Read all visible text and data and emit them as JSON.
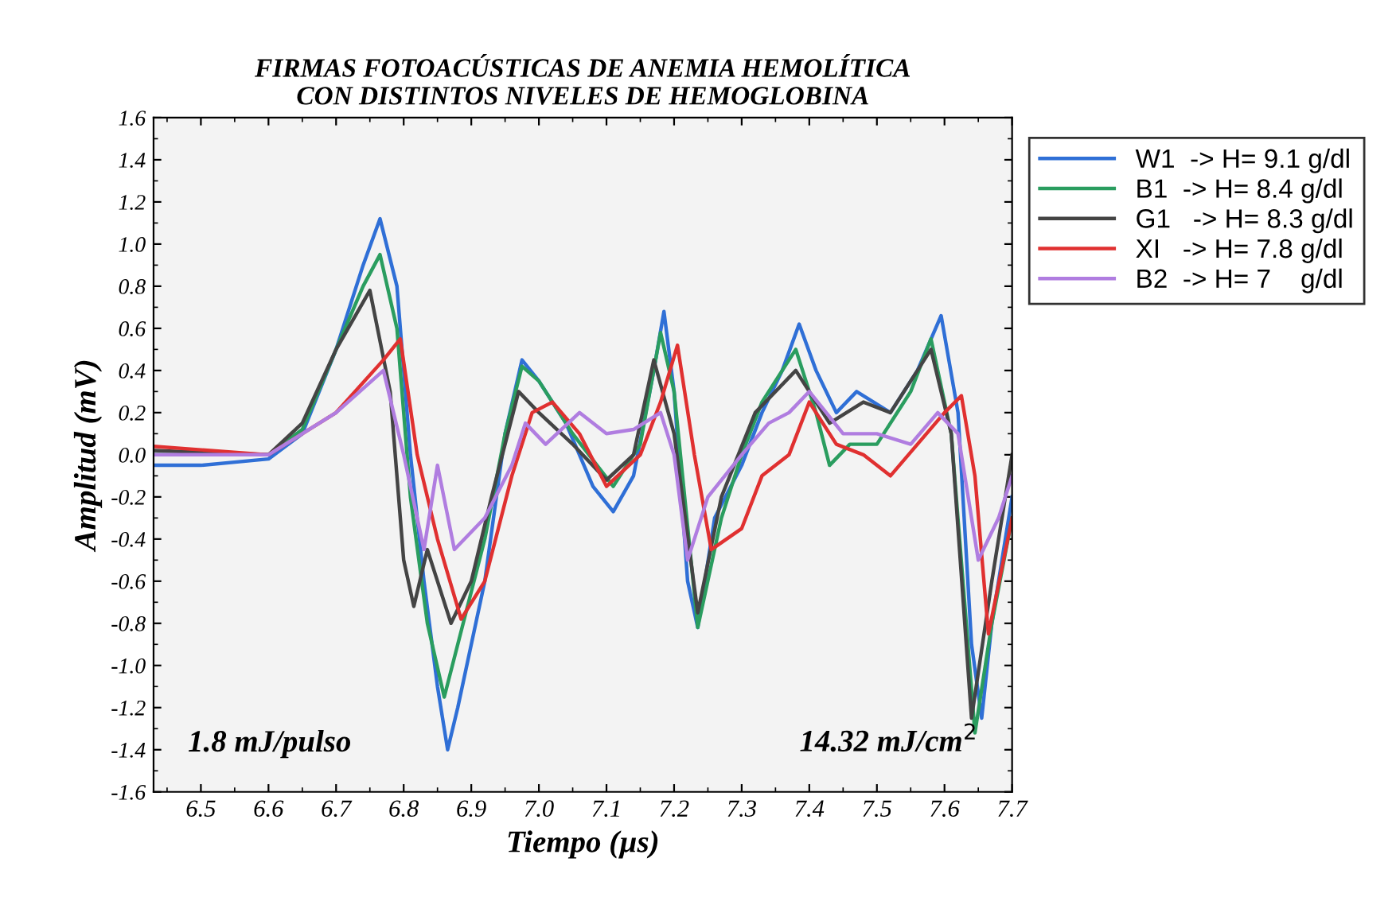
{
  "chart_data": {
    "type": "line",
    "title": "FIRMAS FOTOACÚSTICAS DE ANEMIA HEMOLÍTICA\nCON DISTINTOS NIVELES DE HEMOGLOBINA",
    "xlabel": "Tiempo (µs)",
    "ylabel": "Amplitud (mV)",
    "xlim": [
      6.43,
      7.7
    ],
    "xticks": [
      6.5,
      6.6,
      6.7,
      6.8,
      6.9,
      {
        "value": 7,
        "label": "7.0"
      },
      7.1,
      7.2,
      7.3,
      7.4,
      7.5,
      7.6,
      7.7
    ],
    "ylim": [
      -1.6,
      1.6
    ],
    "yticks": [
      1.6,
      1.4,
      1.2,
      {
        "value": 1,
        "label": "1.0"
      },
      0.8,
      0.6,
      0.4,
      0.2,
      {
        "value": 0,
        "label": "0.0"
      },
      -0.2,
      -0.4,
      -0.6,
      -0.8,
      {
        "value": -1,
        "label": "-1.0"
      },
      -1.2,
      -1.4,
      -1.6
    ],
    "grid": false,
    "legend": "top right",
    "line_style": "solid",
    "marker": "none",
    "annotations": [
      "1.8 mJ/pulso",
      "14.32 mJ/cm$^{2}$"
    ],
    "series": [
      {
        "name": "W1  -> H= 9.1 g/dl",
        "color": "#2f6fd6",
        "x": [
          6.43,
          6.5,
          6.6,
          6.65,
          6.7,
          6.74,
          6.765,
          6.79,
          6.81,
          6.83,
          6.85,
          6.865,
          6.88,
          6.92,
          6.95,
          6.975,
          7.0,
          7.04,
          7.08,
          7.11,
          7.14,
          7.17,
          7.185,
          7.2,
          7.22,
          7.235,
          7.26,
          7.3,
          7.33,
          7.36,
          7.385,
          7.41,
          7.44,
          7.47,
          7.52,
          7.56,
          7.595,
          7.62,
          7.64,
          7.655,
          7.67,
          7.7
        ],
        "values": [
          -0.05,
          -0.05,
          -0.02,
          0.1,
          0.5,
          0.9,
          1.12,
          0.8,
          0.0,
          -0.6,
          -1.1,
          -1.4,
          -1.2,
          -0.6,
          0.1,
          0.45,
          0.35,
          0.15,
          -0.15,
          -0.27,
          -0.1,
          0.4,
          0.68,
          0.3,
          -0.6,
          -0.82,
          -0.3,
          -0.05,
          0.2,
          0.4,
          0.62,
          0.4,
          0.2,
          0.3,
          0.2,
          0.4,
          0.66,
          0.2,
          -0.9,
          -1.25,
          -0.8,
          -0.2
        ]
      },
      {
        "name": "B1  -> H= 8.4 g/dl",
        "color": "#2a9d5f",
        "x": [
          6.43,
          6.5,
          6.6,
          6.65,
          6.7,
          6.74,
          6.765,
          6.79,
          6.81,
          6.835,
          6.86,
          6.88,
          6.92,
          6.95,
          6.975,
          7.0,
          7.05,
          7.11,
          7.15,
          7.18,
          7.2,
          7.235,
          7.27,
          7.3,
          7.33,
          7.38,
          7.41,
          7.43,
          7.46,
          7.5,
          7.55,
          7.58,
          7.61,
          7.645,
          7.67,
          7.7
        ],
        "values": [
          0.0,
          0.0,
          0.0,
          0.12,
          0.5,
          0.8,
          0.95,
          0.6,
          -0.2,
          -0.8,
          -1.15,
          -0.9,
          -0.4,
          0.1,
          0.42,
          0.35,
          0.1,
          -0.15,
          0.05,
          0.58,
          0.3,
          -0.82,
          -0.3,
          0.0,
          0.25,
          0.5,
          0.2,
          -0.05,
          0.05,
          0.05,
          0.3,
          0.55,
          0.1,
          -1.32,
          -0.8,
          -0.3
        ]
      },
      {
        "name": "G1   -> H= 8.3 g/dl",
        "color": "#444444",
        "x": [
          6.43,
          6.6,
          6.65,
          6.7,
          6.75,
          6.78,
          6.8,
          6.815,
          6.835,
          6.87,
          6.9,
          6.93,
          6.97,
          7.0,
          7.05,
          7.1,
          7.14,
          7.17,
          7.2,
          7.235,
          7.27,
          7.32,
          7.38,
          7.43,
          7.48,
          7.52,
          7.58,
          7.61,
          7.64,
          7.67,
          7.7
        ],
        "values": [
          0.02,
          0.0,
          0.15,
          0.5,
          0.78,
          0.3,
          -0.5,
          -0.72,
          -0.45,
          -0.8,
          -0.6,
          -0.2,
          0.3,
          0.2,
          0.05,
          -0.12,
          0.0,
          0.45,
          0.1,
          -0.75,
          -0.2,
          0.2,
          0.4,
          0.15,
          0.25,
          0.2,
          0.5,
          0.1,
          -1.25,
          -0.6,
          0.0
        ]
      },
      {
        "name": "XI   -> H= 7.8 g/dl",
        "color": "#e03030",
        "x": [
          6.43,
          6.6,
          6.7,
          6.77,
          6.795,
          6.82,
          6.85,
          6.885,
          6.92,
          6.96,
          6.99,
          7.02,
          7.06,
          7.1,
          7.15,
          7.18,
          7.205,
          7.23,
          7.255,
          7.3,
          7.33,
          7.37,
          7.4,
          7.44,
          7.48,
          7.52,
          7.56,
          7.6,
          7.625,
          7.645,
          7.665,
          7.7
        ],
        "values": [
          0.04,
          0.0,
          0.2,
          0.45,
          0.55,
          0.0,
          -0.4,
          -0.78,
          -0.6,
          -0.1,
          0.2,
          0.25,
          0.1,
          -0.15,
          0.0,
          0.25,
          0.52,
          0.0,
          -0.45,
          -0.35,
          -0.1,
          0.0,
          0.25,
          0.05,
          0.0,
          -0.1,
          0.05,
          0.2,
          0.28,
          -0.1,
          -0.85,
          -0.3
        ]
      },
      {
        "name": "B2  -> H= 7    g/dl",
        "color": "#b07de0",
        "x": [
          6.43,
          6.6,
          6.7,
          6.77,
          6.8,
          6.83,
          6.85,
          6.875,
          6.92,
          6.96,
          6.98,
          7.01,
          7.06,
          7.1,
          7.14,
          7.18,
          7.2,
          7.22,
          7.25,
          7.3,
          7.34,
          7.37,
          7.4,
          7.45,
          7.5,
          7.55,
          7.59,
          7.62,
          7.65,
          7.68,
          7.7
        ],
        "values": [
          0.0,
          0.0,
          0.2,
          0.4,
          0.0,
          -0.45,
          -0.05,
          -0.45,
          -0.3,
          -0.05,
          0.15,
          0.05,
          0.2,
          0.1,
          0.12,
          0.2,
          0.0,
          -0.5,
          -0.2,
          0.0,
          0.15,
          0.2,
          0.3,
          0.1,
          0.1,
          0.05,
          0.2,
          0.1,
          -0.5,
          -0.3,
          -0.1
        ]
      }
    ]
  }
}
